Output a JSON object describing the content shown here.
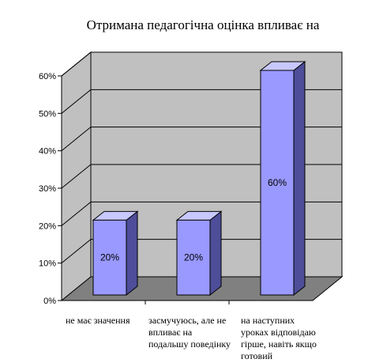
{
  "chart_data": {
    "type": "bar",
    "three_d": true,
    "title": "Отримана педагогічна оцінка впливає на",
    "xlabel": "",
    "ylabel": "",
    "categories": [
      [
        "не має значення"
      ],
      [
        "засмучуюсь, але не",
        "впливає на",
        "подальшу поведінку"
      ],
      [
        "на наступних",
        "уроках відповідаю",
        "гірше, навіть якщо",
        "готовий"
      ]
    ],
    "values": [
      20,
      20,
      60
    ],
    "value_labels": [
      "20%",
      "20%",
      "60%"
    ],
    "ylim": [
      0,
      60
    ],
    "yticks": [
      0,
      10,
      20,
      30,
      40,
      50,
      60
    ],
    "ytick_labels": [
      "0%",
      "10%",
      "20%",
      "30%",
      "40%",
      "50%",
      "60%"
    ],
    "grid": true,
    "legend": "none",
    "colors": {
      "bar_front": "#9999ff",
      "bar_side": "#4d4d99",
      "bar_top": "#c8c8ff",
      "back_wall": "#c0c0c0",
      "side_wall": "#c0c0c0",
      "floor": "#808080",
      "gridline": "#000000"
    }
  }
}
